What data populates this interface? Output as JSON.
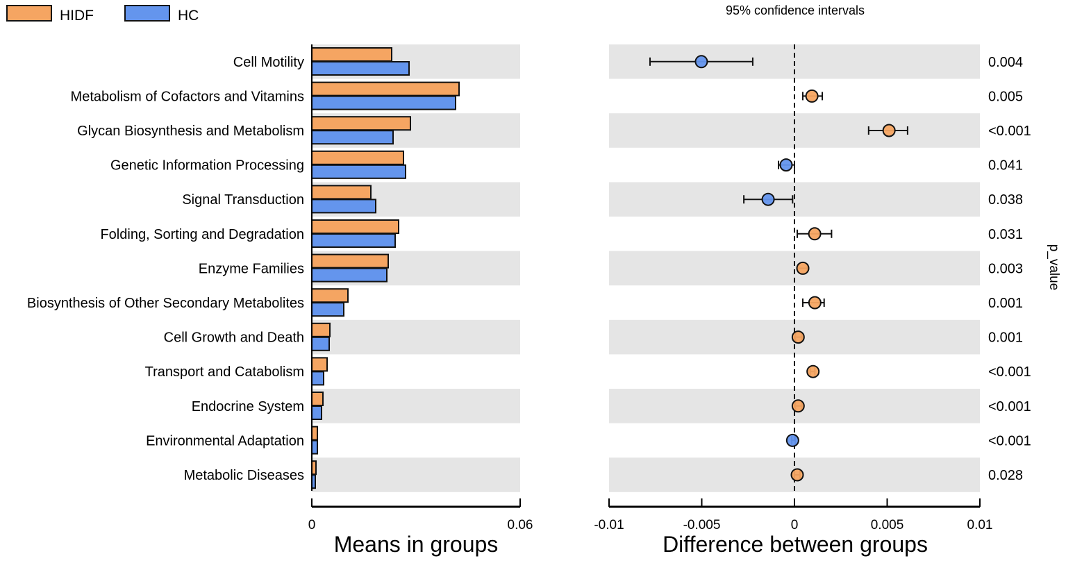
{
  "chart_data": [
    {
      "type": "bar",
      "orientation": "horizontal",
      "xlabel": "Means in groups",
      "xlim": [
        0,
        0.06
      ],
      "xticks": [
        "0",
        "0.06"
      ],
      "legend": {
        "placement": "top-left",
        "entries": [
          "HIDF",
          "HC"
        ]
      },
      "categories": [
        "Cell Motility",
        "Metabolism of Cofactors and Vitamins",
        "Glycan Biosynthesis and Metabolism",
        "Genetic Information Processing",
        "Signal Transduction",
        "Folding, Sorting and Degradation",
        "Enzyme Families",
        "Biosynthesis of Other Secondary Metabolites",
        "Cell Growth and Death",
        "Transport and Catabolism",
        "Endocrine System",
        "Environmental Adaptation",
        "Metabolic Diseases"
      ],
      "series": [
        {
          "name": "HIDF",
          "color": "#F5A562",
          "values": [
            0.023,
            0.0424,
            0.0284,
            0.0264,
            0.017,
            0.025,
            0.022,
            0.0104,
            0.0052,
            0.0044,
            0.0032,
            0.0016,
            0.0012
          ]
        },
        {
          "name": "HC",
          "color": "#6495ED",
          "values": [
            0.028,
            0.0414,
            0.0234,
            0.027,
            0.0184,
            0.024,
            0.0216,
            0.0092,
            0.005,
            0.0034,
            0.0028,
            0.0016,
            0.001
          ]
        }
      ]
    },
    {
      "type": "scatter",
      "title": "95% confidence intervals",
      "xlabel": "Difference between groups",
      "xlim": [
        -0.01,
        0.01
      ],
      "xticks": [
        "-0.01",
        "-0.005",
        "0",
        "0.005",
        "0.01"
      ],
      "reference_line": 0,
      "right_label": "p_value",
      "differences": [
        -0.00502,
        0.00094,
        0.0051,
        -0.00045,
        -0.00142,
        0.00109,
        0.00045,
        0.0011,
        0.0002,
        0.001,
        0.0002,
        -0.0001,
        0.00015
      ],
      "ci_low": [
        -0.00779,
        0.00045,
        0.004,
        -0.00086,
        -0.00273,
        0.00015,
        0.0002,
        0.00045,
        5e-05,
        0.00085,
        5e-05,
        -0.00015,
        0.0
      ],
      "ci_high": [
        -0.00225,
        0.0015,
        0.0061,
        0.0,
        -0.0001,
        0.002,
        0.0007,
        0.0016,
        0.0004,
        0.0011,
        0.0004,
        5e-05,
        0.0003
      ],
      "point_group": [
        "HC",
        "HIDF",
        "HIDF",
        "HC",
        "HC",
        "HIDF",
        "HIDF",
        "HIDF",
        "HIDF",
        "HIDF",
        "HIDF",
        "HC",
        "HIDF"
      ],
      "p_values": [
        "0.004",
        "0.005",
        "<0.001",
        "0.041",
        "0.038",
        "0.031",
        "0.003",
        "0.001",
        "0.001",
        "<0.001",
        "<0.001",
        "<0.001",
        "0.028"
      ]
    }
  ],
  "colors": {
    "HIDF": "#F5A562",
    "HC": "#6495ED",
    "row_band": "#E5E5E5"
  }
}
